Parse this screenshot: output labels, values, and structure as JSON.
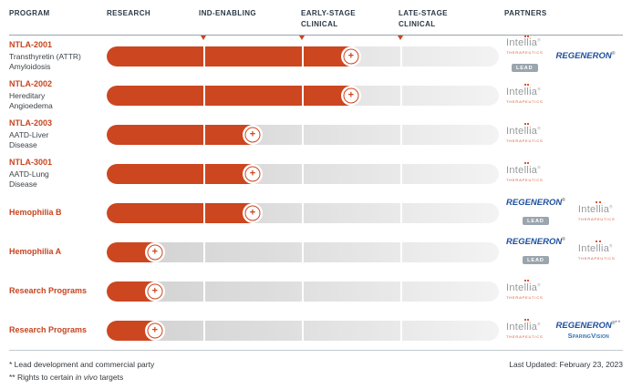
{
  "header": {
    "columns": [
      {
        "label": "PROGRAM"
      },
      {
        "label": "RESEARCH"
      },
      {
        "label": "IND-ENABLING"
      },
      {
        "label": "EARLY-STAGE\nCLINICAL"
      },
      {
        "label": "LATE-STAGE\nCLINICAL"
      },
      {
        "label": "PARTNERS"
      }
    ]
  },
  "icons": {
    "plus": "+",
    "stage_marker": "triangle-down"
  },
  "pipeline": {
    "stage_fill_pct": {
      "research": 12.3,
      "ind-enabling": 37.2,
      "early-clinical": 62.3
    },
    "rows": [
      {
        "program": "NTLA-2001",
        "description": "Transthyretin (ATTR)\nAmyloidosis",
        "stage": "early-clinical",
        "partners": [
          {
            "type": "intellia",
            "lead": true
          },
          {
            "type": "regeneron",
            "lead": false
          }
        ]
      },
      {
        "program": "NTLA-2002",
        "description": "Hereditary\nAngioedema",
        "stage": "early-clinical",
        "partners": [
          {
            "type": "intellia",
            "lead": false
          }
        ]
      },
      {
        "program": "NTLA-2003",
        "description": "AATD-Liver\nDisease",
        "stage": "ind-enabling",
        "partners": [
          {
            "type": "intellia",
            "lead": false
          }
        ]
      },
      {
        "program": "NTLA-3001",
        "description": "AATD-Lung\nDisease",
        "stage": "ind-enabling",
        "partners": [
          {
            "type": "intellia",
            "lead": false
          }
        ]
      },
      {
        "program": "Hemophilia B",
        "description": "",
        "stage": "ind-enabling",
        "partners": [
          {
            "type": "regeneron",
            "lead": true
          },
          {
            "type": "intellia",
            "lead": false
          }
        ]
      },
      {
        "program": "Hemophilia A",
        "description": "",
        "stage": "research",
        "partners": [
          {
            "type": "regeneron",
            "lead": true
          },
          {
            "type": "intellia",
            "lead": false
          }
        ]
      },
      {
        "program": "Research Programs",
        "description": "",
        "stage": "research",
        "partners": [
          {
            "type": "intellia",
            "lead": false
          }
        ]
      },
      {
        "program": "Research Programs",
        "description": "",
        "stage": "research",
        "partners": [
          {
            "type": "intellia",
            "lead": false
          },
          {
            "type": "regeneron-sparingvision",
            "lead": false
          }
        ]
      }
    ]
  },
  "logos": {
    "intellia": {
      "pre": "Inte",
      "ll": "ll",
      "post": "ia",
      "reg": "®",
      "sub": "THERAPEUTICS"
    },
    "regeneron": {
      "name": "REGENERON",
      "reg": "®"
    },
    "sparingvision": "SparingVision",
    "lead_badge": "LEAD",
    "double_asterisk": "**"
  },
  "footer": {
    "note1": "* Lead development and commercial party",
    "note2_prefix": "** Rights to certain ",
    "note2_italic": "in vivo",
    "note2_suffix": " targets",
    "last_updated": "Last Updated: February 23, 2023"
  },
  "colors": {
    "accent_orange": "#cc4620",
    "header_text": "#2b3946",
    "intellia_gray": "#97999b",
    "intellia_sub_orange": "#d9532b",
    "regeneron_blue": "#1d4f9d",
    "sparingvision_blue": "#2f6fb5",
    "track_gray_start": "#d0d0d0",
    "track_gray_end": "#f3f3f3"
  },
  "chart_data": {
    "type": "bar",
    "stages_axis": [
      "Research",
      "IND-Enabling",
      "Early-Stage Clinical",
      "Late-Stage Clinical"
    ],
    "categories": [
      "NTLA-2001 Transthyretin (ATTR) Amyloidosis",
      "NTLA-2002 Hereditary Angioedema",
      "NTLA-2003 AATD-Liver Disease",
      "NTLA-3001 AATD-Lung Disease",
      "Hemophilia B",
      "Hemophilia A",
      "Research Programs",
      "Research Programs"
    ],
    "current_stage": [
      "Early-Stage Clinical",
      "Early-Stage Clinical",
      "IND-Enabling",
      "IND-Enabling",
      "IND-Enabling",
      "Research",
      "Research",
      "Research"
    ],
    "partners": [
      [
        "Intellia Therapeutics (LEAD)",
        "Regeneron"
      ],
      [
        "Intellia Therapeutics"
      ],
      [
        "Intellia Therapeutics"
      ],
      [
        "Intellia Therapeutics"
      ],
      [
        "Regeneron (LEAD)",
        "Intellia Therapeutics"
      ],
      [
        "Regeneron (LEAD)",
        "Intellia Therapeutics"
      ],
      [
        "Intellia Therapeutics"
      ],
      [
        "Intellia Therapeutics",
        "Regeneron** / SparingVision"
      ]
    ],
    "legend_position": "none",
    "grid": false
  }
}
